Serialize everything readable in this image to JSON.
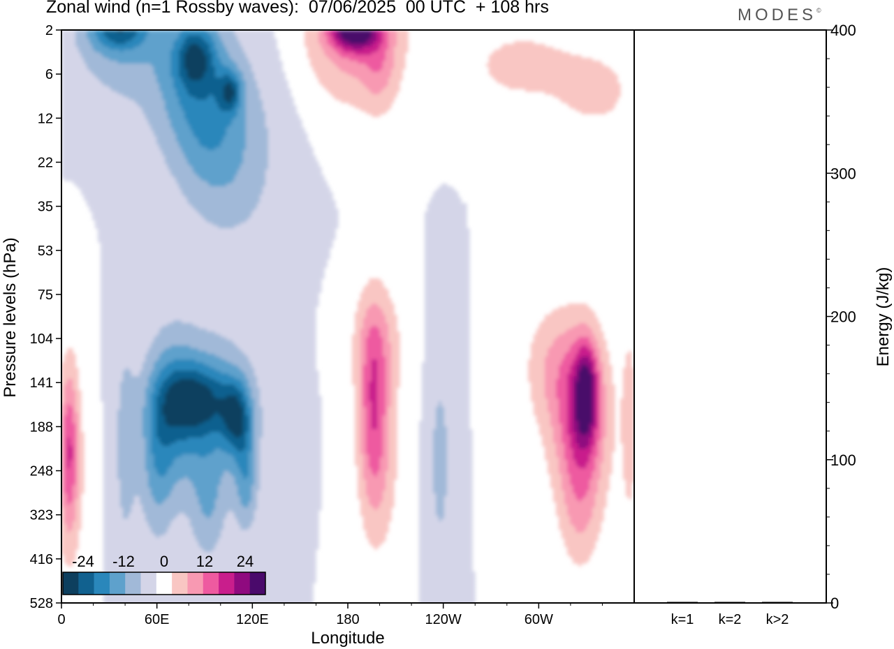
{
  "header": {
    "title": "Zonal wind (n=1 Rossby waves):  07/06/2025  00 UTC  + 108 hrs",
    "brand": "MODES"
  },
  "chart_data": [
    {
      "type": "heatmap",
      "title": "Zonal wind (n=1 Rossby waves):  07/06/2025  00 UTC  + 108 hrs",
      "xlabel": "Longitude",
      "ylabel": "Pressure levels (hPa)",
      "x_ticks": [
        "0",
        "60E",
        "120E",
        "180",
        "120W",
        "60W"
      ],
      "x_tick_degrees": [
        0,
        60,
        120,
        180,
        240,
        300
      ],
      "xlim": [
        0,
        360
      ],
      "y_levels": [
        "2",
        "6",
        "12",
        "22",
        "35",
        "53",
        "75",
        "104",
        "141",
        "188",
        "248",
        "323",
        "416",
        "528"
      ],
      "y_scale": "one row per level, top 2 hPa to bottom 528 hPa",
      "colorbar": {
        "tick_labels": [
          "-24",
          "-12",
          "0",
          "12",
          "24"
        ],
        "tick_values": [
          -24,
          -12,
          0,
          12,
          24
        ],
        "bins": [
          -30,
          -25,
          -20,
          -15,
          -10,
          -5,
          0,
          5,
          10,
          15,
          20,
          25,
          30
        ],
        "colors": [
          "#0d3f5e",
          "#11618f",
          "#2a87bb",
          "#5ea1cc",
          "#a1b9d8",
          "#d4d5e8",
          "#ffffff",
          "#f9c6c3",
          "#f899b2",
          "#ee5aa0",
          "#c91e8c",
          "#8f0a7f",
          "#4a0a6b"
        ]
      },
      "blobs": [
        {
          "lon": 36,
          "level": 0.3,
          "rx": 32,
          "ry": 1.4,
          "value": -9
        },
        {
          "lon": 36,
          "level": 0.0,
          "rx": 20,
          "ry": 0.5,
          "value": -16
        },
        {
          "lon": 78,
          "level": 1.3,
          "rx": 30,
          "ry": 2.0,
          "value": -9
        },
        {
          "lon": 92,
          "level": 2.0,
          "rx": 24,
          "ry": 2.2,
          "value": -8
        },
        {
          "lon": 112,
          "level": 2.8,
          "rx": 30,
          "ry": 2.4,
          "value": -7
        },
        {
          "lon": 84,
          "level": 0.6,
          "rx": 14,
          "ry": 0.8,
          "value": -16
        },
        {
          "lon": 106,
          "level": 1.4,
          "rx": 8,
          "ry": 0.5,
          "value": -15
        },
        {
          "lon": 40,
          "level": 9.5,
          "rx": 8,
          "ry": 2.8,
          "value": -7
        },
        {
          "lon": 70,
          "level": 8.6,
          "rx": 18,
          "ry": 2.0,
          "value": -11
        },
        {
          "lon": 96,
          "level": 8.7,
          "rx": 30,
          "ry": 2.0,
          "value": -11
        },
        {
          "lon": 60,
          "level": 9.8,
          "rx": 12,
          "ry": 2.0,
          "value": -10
        },
        {
          "lon": 84,
          "level": 8.4,
          "rx": 24,
          "ry": 0.9,
          "value": -17
        },
        {
          "lon": 110,
          "level": 8.8,
          "rx": 10,
          "ry": 0.9,
          "value": -17
        },
        {
          "lon": 116,
          "level": 10.2,
          "rx": 8,
          "ry": 1.3,
          "value": -11
        },
        {
          "lon": 92,
          "level": 10.8,
          "rx": 12,
          "ry": 1.5,
          "value": -8
        },
        {
          "lon": 184,
          "level": 0.0,
          "rx": 34,
          "ry": 1.8,
          "value": 14
        },
        {
          "lon": 184,
          "level": 0.0,
          "rx": 16,
          "ry": 0.5,
          "value": 26
        },
        {
          "lon": 200,
          "level": 0.8,
          "rx": 12,
          "ry": 1.2,
          "value": 7
        },
        {
          "lon": 290,
          "level": 0.8,
          "rx": 42,
          "ry": 1.0,
          "value": 7
        },
        {
          "lon": 336,
          "level": 1.4,
          "rx": 26,
          "ry": 0.9,
          "value": 7
        },
        {
          "lon": 5,
          "level": 9.5,
          "rx": 6,
          "ry": 2.0,
          "value": 14
        },
        {
          "lon": 5,
          "level": 10.0,
          "rx": 12,
          "ry": 2.8,
          "value": 7
        },
        {
          "lon": 196,
          "level": 8.6,
          "rx": 10,
          "ry": 2.4,
          "value": 14
        },
        {
          "lon": 198,
          "level": 7.0,
          "rx": 18,
          "ry": 1.4,
          "value": 7
        },
        {
          "lon": 200,
          "level": 9.6,
          "rx": 16,
          "ry": 2.8,
          "value": 7
        },
        {
          "lon": 238,
          "level": 9.8,
          "rx": 8,
          "ry": 2.6,
          "value": -7
        },
        {
          "lon": 308,
          "level": 7.6,
          "rx": 20,
          "ry": 1.5,
          "value": 7
        },
        {
          "lon": 326,
          "level": 8.8,
          "rx": 28,
          "ry": 2.4,
          "value": 7
        },
        {
          "lon": 326,
          "level": 11.0,
          "rx": 14,
          "ry": 1.6,
          "value": 7
        },
        {
          "lon": 326,
          "level": 8.8,
          "rx": 16,
          "ry": 2.0,
          "value": 14
        },
        {
          "lon": 330,
          "level": 8.2,
          "rx": 8,
          "ry": 1.2,
          "value": 20
        },
        {
          "lon": 357,
          "level": 9.0,
          "rx": 5,
          "ry": 2.5,
          "value": 7
        }
      ]
    },
    {
      "type": "bar",
      "ylabel": "Energy (J/kg)",
      "categories": [
        "k=1",
        "k=2",
        "k>2"
      ],
      "values": [
        0.3,
        0.6,
        0.3
      ],
      "ylim": [
        0,
        400
      ],
      "y_ticks": [
        0,
        100,
        200,
        300,
        400
      ]
    }
  ]
}
